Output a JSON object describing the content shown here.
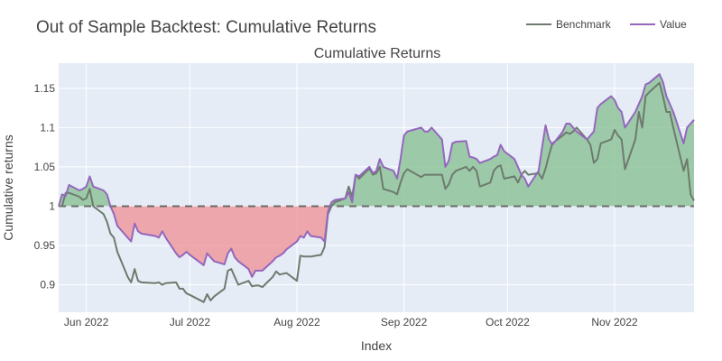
{
  "chart_data": {
    "type": "line",
    "title": "Out of Sample Backtest: Cumulative Returns",
    "subtitle": "Cumulative Returns",
    "xlabel": "Index",
    "ylabel": "Cumulative returns",
    "x_range": [
      "2022-05-24",
      "2022-11-24"
    ],
    "ylim": [
      0.865,
      1.182
    ],
    "x_ticks": [
      {
        "date": "2022-06-01",
        "label": "Jun 2022"
      },
      {
        "date": "2022-07-01",
        "label": "Jul 2022"
      },
      {
        "date": "2022-08-01",
        "label": "Aug 2022"
      },
      {
        "date": "2022-09-01",
        "label": "Sep 2022"
      },
      {
        "date": "2022-10-01",
        "label": "Oct 2022"
      },
      {
        "date": "2022-11-01",
        "label": "Nov 2022"
      }
    ],
    "y_ticks": [
      {
        "value": 0.9,
        "label": "0.9"
      },
      {
        "value": 0.95,
        "label": "0.95"
      },
      {
        "value": 1.0,
        "label": "1"
      },
      {
        "value": 1.05,
        "label": "1.05"
      },
      {
        "value": 1.1,
        "label": "1.1"
      },
      {
        "value": 1.15,
        "label": "1.15"
      }
    ],
    "baseline": 1.0,
    "grid": true,
    "legend_position": "top-right",
    "series": [
      {
        "name": "Benchmark",
        "color": "#6e7a6e",
        "points": [
          [
            "2022-05-24",
            1.0
          ],
          [
            "2022-05-25",
            1.0
          ],
          [
            "2022-05-26",
            1.017
          ],
          [
            "2022-05-27",
            1.017
          ],
          [
            "2022-05-30",
            1.012
          ],
          [
            "2022-05-31",
            1.008
          ],
          [
            "2022-06-01",
            1.01
          ],
          [
            "2022-06-02",
            1.022
          ],
          [
            "2022-06-03",
            1.0
          ],
          [
            "2022-06-06",
            0.99
          ],
          [
            "2022-06-07",
            0.98
          ],
          [
            "2022-06-08",
            0.965
          ],
          [
            "2022-06-09",
            0.96
          ],
          [
            "2022-06-10",
            0.942
          ],
          [
            "2022-06-13",
            0.91
          ],
          [
            "2022-06-14",
            0.903
          ],
          [
            "2022-06-15",
            0.92
          ],
          [
            "2022-06-16",
            0.905
          ],
          [
            "2022-06-17",
            0.903
          ],
          [
            "2022-06-21",
            0.902
          ],
          [
            "2022-06-22",
            0.903
          ],
          [
            "2022-06-23",
            0.9
          ],
          [
            "2022-06-24",
            0.902
          ],
          [
            "2022-06-27",
            0.903
          ],
          [
            "2022-06-28",
            0.895
          ],
          [
            "2022-06-29",
            0.895
          ],
          [
            "2022-06-30",
            0.889
          ],
          [
            "2022-07-01",
            0.887
          ],
          [
            "2022-07-05",
            0.878
          ],
          [
            "2022-07-06",
            0.888
          ],
          [
            "2022-07-07",
            0.88
          ],
          [
            "2022-07-08",
            0.885
          ],
          [
            "2022-07-11",
            0.895
          ],
          [
            "2022-07-12",
            0.918
          ],
          [
            "2022-07-13",
            0.92
          ],
          [
            "2022-07-14",
            0.91
          ],
          [
            "2022-07-15",
            0.9
          ],
          [
            "2022-07-18",
            0.905
          ],
          [
            "2022-07-19",
            0.898
          ],
          [
            "2022-07-20",
            0.899
          ],
          [
            "2022-07-21",
            0.899
          ],
          [
            "2022-07-22",
            0.897
          ],
          [
            "2022-07-25",
            0.91
          ],
          [
            "2022-07-26",
            0.917
          ],
          [
            "2022-07-27",
            0.913
          ],
          [
            "2022-07-28",
            0.914
          ],
          [
            "2022-07-29",
            0.915
          ],
          [
            "2022-08-01",
            0.905
          ],
          [
            "2022-08-02",
            0.937
          ],
          [
            "2022-08-03",
            0.936
          ],
          [
            "2022-08-04",
            0.936
          ],
          [
            "2022-08-05",
            0.936
          ],
          [
            "2022-08-08",
            0.938
          ],
          [
            "2022-08-09",
            0.948
          ],
          [
            "2022-08-10",
            0.99
          ],
          [
            "2022-08-11",
            1.0
          ],
          [
            "2022-08-12",
            1.005
          ],
          [
            "2022-08-15",
            1.01
          ],
          [
            "2022-08-16",
            1.025
          ],
          [
            "2022-08-17",
            1.012
          ],
          [
            "2022-08-18",
            1.04
          ],
          [
            "2022-08-19",
            1.035
          ],
          [
            "2022-08-22",
            1.048
          ],
          [
            "2022-08-23",
            1.04
          ],
          [
            "2022-08-24",
            1.042
          ],
          [
            "2022-08-25",
            1.05
          ],
          [
            "2022-08-26",
            1.022
          ],
          [
            "2022-08-29",
            1.018
          ],
          [
            "2022-08-30",
            1.015
          ],
          [
            "2022-08-31",
            1.03
          ],
          [
            "2022-09-01",
            1.042
          ],
          [
            "2022-09-02",
            1.047
          ],
          [
            "2022-09-06",
            1.037
          ],
          [
            "2022-09-07",
            1.04
          ],
          [
            "2022-09-08",
            1.04
          ],
          [
            "2022-09-09",
            1.04
          ],
          [
            "2022-09-12",
            1.04
          ],
          [
            "2022-09-13",
            1.022
          ],
          [
            "2022-09-14",
            1.028
          ],
          [
            "2022-09-15",
            1.04
          ],
          [
            "2022-09-16",
            1.045
          ],
          [
            "2022-09-19",
            1.05
          ],
          [
            "2022-09-20",
            1.045
          ],
          [
            "2022-09-21",
            1.05
          ],
          [
            "2022-09-22",
            1.045
          ],
          [
            "2022-09-23",
            1.025
          ],
          [
            "2022-09-26",
            1.03
          ],
          [
            "2022-09-27",
            1.045
          ],
          [
            "2022-09-28",
            1.05
          ],
          [
            "2022-09-29",
            1.052
          ],
          [
            "2022-09-30",
            1.035
          ],
          [
            "2022-10-03",
            1.038
          ],
          [
            "2022-10-04",
            1.03
          ],
          [
            "2022-10-05",
            1.04
          ],
          [
            "2022-10-06",
            1.045
          ],
          [
            "2022-10-07",
            1.04
          ],
          [
            "2022-10-10",
            1.042
          ],
          [
            "2022-10-11",
            1.035
          ],
          [
            "2022-10-12",
            1.048
          ],
          [
            "2022-10-13",
            1.065
          ],
          [
            "2022-10-14",
            1.08
          ],
          [
            "2022-10-17",
            1.09
          ],
          [
            "2022-10-18",
            1.094
          ],
          [
            "2022-10-19",
            1.092
          ],
          [
            "2022-10-20",
            1.095
          ],
          [
            "2022-10-21",
            1.1
          ],
          [
            "2022-10-24",
            1.085
          ],
          [
            "2022-10-25",
            1.078
          ],
          [
            "2022-10-26",
            1.055
          ],
          [
            "2022-10-27",
            1.06
          ],
          [
            "2022-10-28",
            1.08
          ],
          [
            "2022-10-31",
            1.085
          ],
          [
            "2022-11-01",
            1.097
          ],
          [
            "2022-11-02",
            1.09
          ],
          [
            "2022-11-03",
            1.085
          ],
          [
            "2022-11-04",
            1.047
          ],
          [
            "2022-11-07",
            1.085
          ],
          [
            "2022-11-08",
            1.12
          ],
          [
            "2022-11-09",
            1.1
          ],
          [
            "2022-11-10",
            1.14
          ],
          [
            "2022-11-11",
            1.145
          ],
          [
            "2022-11-14",
            1.157
          ],
          [
            "2022-11-15",
            1.14
          ],
          [
            "2022-11-16",
            1.12
          ],
          [
            "2022-11-17",
            1.12
          ],
          [
            "2022-11-18",
            1.1
          ],
          [
            "2022-11-21",
            1.045
          ],
          [
            "2022-11-22",
            1.06
          ],
          [
            "2022-11-23",
            1.015
          ],
          [
            "2022-11-24",
            1.007
          ]
        ]
      },
      {
        "name": "Value",
        "color": "#9467bd",
        "points": [
          [
            "2022-05-24",
            1.0
          ],
          [
            "2022-05-25",
            1.015
          ],
          [
            "2022-05-26",
            1.013
          ],
          [
            "2022-05-27",
            1.027
          ],
          [
            "2022-05-30",
            1.02
          ],
          [
            "2022-05-31",
            1.022
          ],
          [
            "2022-06-01",
            1.025
          ],
          [
            "2022-06-02",
            1.038
          ],
          [
            "2022-06-03",
            1.025
          ],
          [
            "2022-06-06",
            1.02
          ],
          [
            "2022-06-07",
            1.015
          ],
          [
            "2022-06-08",
            1.0
          ],
          [
            "2022-06-09",
            0.99
          ],
          [
            "2022-06-10",
            0.975
          ],
          [
            "2022-06-13",
            0.96
          ],
          [
            "2022-06-14",
            0.955
          ],
          [
            "2022-06-15",
            0.978
          ],
          [
            "2022-06-16",
            0.968
          ],
          [
            "2022-06-17",
            0.965
          ],
          [
            "2022-06-21",
            0.962
          ],
          [
            "2022-06-22",
            0.96
          ],
          [
            "2022-06-23",
            0.968
          ],
          [
            "2022-06-24",
            0.96
          ],
          [
            "2022-06-27",
            0.94
          ],
          [
            "2022-06-28",
            0.935
          ],
          [
            "2022-06-29",
            0.938
          ],
          [
            "2022-06-30",
            0.942
          ],
          [
            "2022-07-01",
            0.938
          ],
          [
            "2022-07-05",
            0.925
          ],
          [
            "2022-07-06",
            0.94
          ],
          [
            "2022-07-07",
            0.935
          ],
          [
            "2022-07-08",
            0.93
          ],
          [
            "2022-07-11",
            0.926
          ],
          [
            "2022-07-12",
            0.94
          ],
          [
            "2022-07-13",
            0.946
          ],
          [
            "2022-07-14",
            0.935
          ],
          [
            "2022-07-15",
            0.93
          ],
          [
            "2022-07-18",
            0.92
          ],
          [
            "2022-07-19",
            0.91
          ],
          [
            "2022-07-20",
            0.918
          ],
          [
            "2022-07-21",
            0.918
          ],
          [
            "2022-07-22",
            0.918
          ],
          [
            "2022-07-25",
            0.93
          ],
          [
            "2022-07-26",
            0.935
          ],
          [
            "2022-07-27",
            0.937
          ],
          [
            "2022-07-28",
            0.94
          ],
          [
            "2022-07-29",
            0.945
          ],
          [
            "2022-08-01",
            0.955
          ],
          [
            "2022-08-02",
            0.962
          ],
          [
            "2022-08-03",
            0.96
          ],
          [
            "2022-08-04",
            0.968
          ],
          [
            "2022-08-05",
            0.962
          ],
          [
            "2022-08-08",
            0.96
          ],
          [
            "2022-08-09",
            0.955
          ],
          [
            "2022-08-10",
            0.993
          ],
          [
            "2022-08-11",
            1.005
          ],
          [
            "2022-08-12",
            1.008
          ],
          [
            "2022-08-15",
            1.01
          ],
          [
            "2022-08-16",
            1.018
          ],
          [
            "2022-08-17",
            1.005
          ],
          [
            "2022-08-18",
            1.04
          ],
          [
            "2022-08-19",
            1.038
          ],
          [
            "2022-08-22",
            1.05
          ],
          [
            "2022-08-23",
            1.042
          ],
          [
            "2022-08-24",
            1.045
          ],
          [
            "2022-08-25",
            1.06
          ],
          [
            "2022-08-26",
            1.05
          ],
          [
            "2022-08-29",
            1.045
          ],
          [
            "2022-08-30",
            1.035
          ],
          [
            "2022-08-31",
            1.06
          ],
          [
            "2022-09-01",
            1.09
          ],
          [
            "2022-09-02",
            1.095
          ],
          [
            "2022-09-06",
            1.1
          ],
          [
            "2022-09-07",
            1.095
          ],
          [
            "2022-09-08",
            1.095
          ],
          [
            "2022-09-09",
            1.1
          ],
          [
            "2022-09-12",
            1.085
          ],
          [
            "2022-09-13",
            1.05
          ],
          [
            "2022-09-14",
            1.058
          ],
          [
            "2022-09-15",
            1.08
          ],
          [
            "2022-09-16",
            1.082
          ],
          [
            "2022-09-19",
            1.083
          ],
          [
            "2022-09-20",
            1.063
          ],
          [
            "2022-09-21",
            1.062
          ],
          [
            "2022-09-22",
            1.06
          ],
          [
            "2022-09-23",
            1.055
          ],
          [
            "2022-09-26",
            1.06
          ],
          [
            "2022-09-27",
            1.063
          ],
          [
            "2022-09-28",
            1.065
          ],
          [
            "2022-09-29",
            1.078
          ],
          [
            "2022-09-30",
            1.07
          ],
          [
            "2022-10-03",
            1.06
          ],
          [
            "2022-10-04",
            1.05
          ],
          [
            "2022-10-05",
            1.04
          ],
          [
            "2022-10-06",
            1.035
          ],
          [
            "2022-10-07",
            1.025
          ],
          [
            "2022-10-10",
            1.045
          ],
          [
            "2022-10-11",
            1.075
          ],
          [
            "2022-10-12",
            1.103
          ],
          [
            "2022-10-13",
            1.085
          ],
          [
            "2022-10-14",
            1.078
          ],
          [
            "2022-10-17",
            1.095
          ],
          [
            "2022-10-18",
            1.105
          ],
          [
            "2022-10-19",
            1.105
          ],
          [
            "2022-10-20",
            1.1
          ],
          [
            "2022-10-21",
            1.095
          ],
          [
            "2022-10-24",
            1.085
          ],
          [
            "2022-10-25",
            1.09
          ],
          [
            "2022-10-26",
            1.095
          ],
          [
            "2022-10-27",
            1.125
          ],
          [
            "2022-10-28",
            1.13
          ],
          [
            "2022-10-31",
            1.14
          ],
          [
            "2022-11-01",
            1.135
          ],
          [
            "2022-11-02",
            1.125
          ],
          [
            "2022-11-03",
            1.12
          ],
          [
            "2022-11-04",
            1.1
          ],
          [
            "2022-11-07",
            1.12
          ],
          [
            "2022-11-08",
            1.13
          ],
          [
            "2022-11-09",
            1.14
          ],
          [
            "2022-11-10",
            1.155
          ],
          [
            "2022-11-11",
            1.157
          ],
          [
            "2022-11-14",
            1.168
          ],
          [
            "2022-11-15",
            1.158
          ],
          [
            "2022-11-16",
            1.14
          ],
          [
            "2022-11-17",
            1.13
          ],
          [
            "2022-11-18",
            1.12
          ],
          [
            "2022-11-21",
            1.08
          ],
          [
            "2022-11-22",
            1.1
          ],
          [
            "2022-11-23",
            1.105
          ],
          [
            "2022-11-24",
            1.11
          ]
        ]
      }
    ],
    "fill_colors": {
      "above": "#8fc49a",
      "below": "#ef9a9e"
    }
  }
}
